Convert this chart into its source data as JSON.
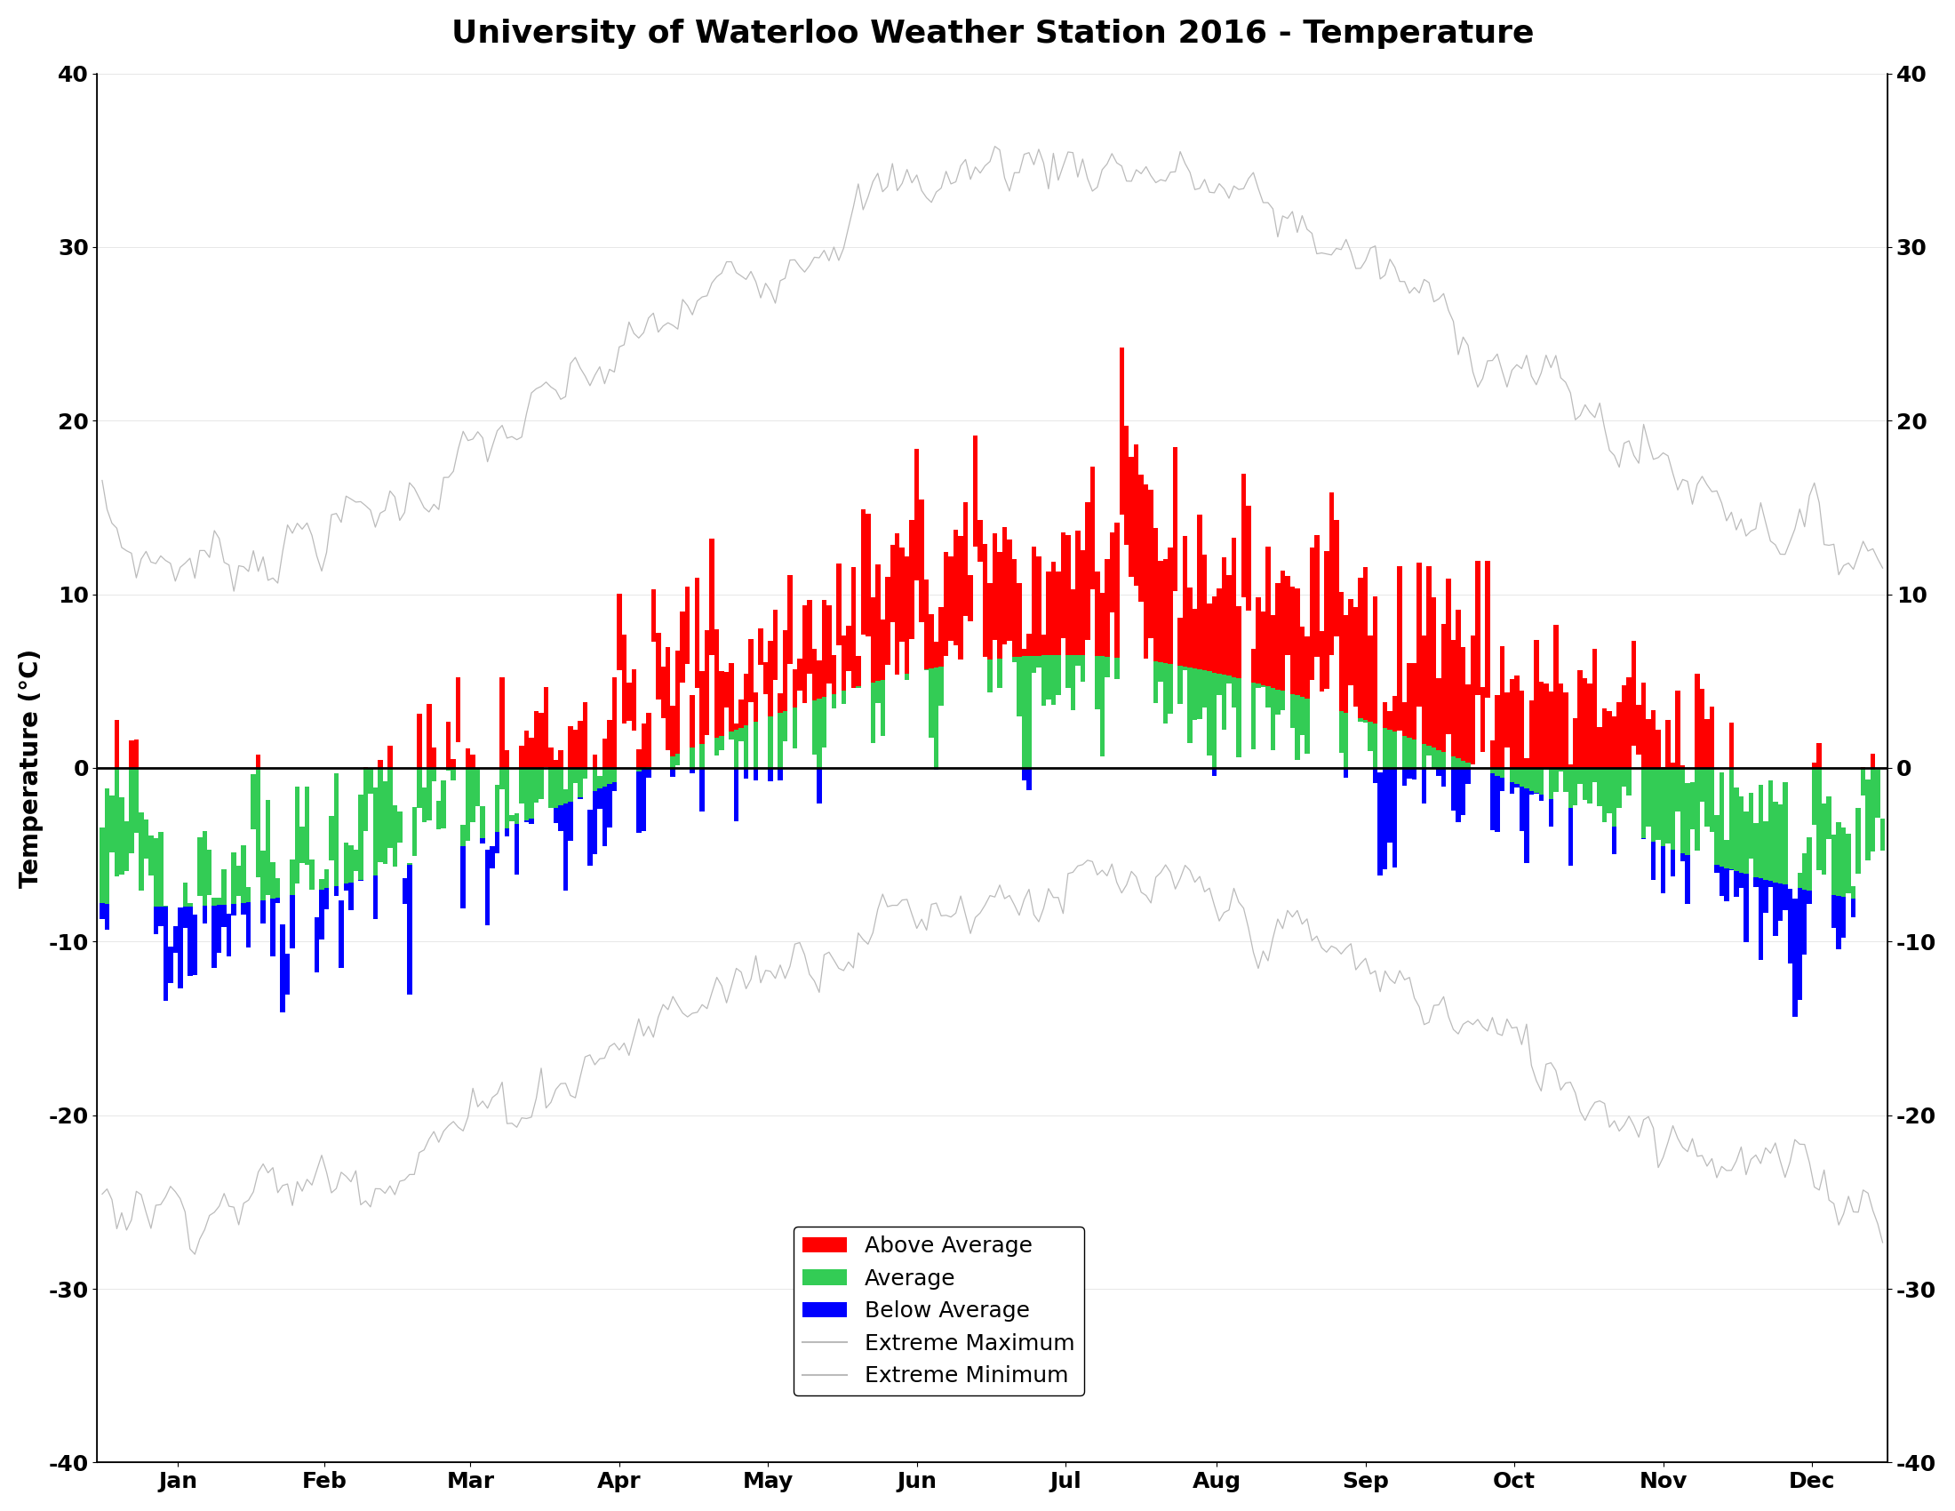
{
  "title": "University of Waterloo Weather Station 2016 - Temperature",
  "ylabel": "Temperature (°C)",
  "ylim": [
    -40,
    40
  ],
  "yticks": [
    -40,
    -30,
    -20,
    -10,
    0,
    10,
    20,
    30,
    40
  ],
  "months": [
    "Jan",
    "Feb",
    "Mar",
    "Apr",
    "May",
    "Jun",
    "Jul",
    "Aug",
    "Sep",
    "Oct",
    "Nov",
    "Dec"
  ],
  "days_in_month": [
    31,
    29,
    31,
    30,
    31,
    30,
    31,
    31,
    30,
    31,
    30,
    31
  ],
  "background_color": "#ffffff",
  "title_fontsize": 26,
  "axis_fontsize": 20,
  "tick_fontsize": 18,
  "legend_fontsize": 18,
  "color_above": "#ff0000",
  "color_avg": "#33cc55",
  "color_below": "#0000ff",
  "color_extreme": "#bbbbbb",
  "color_zero_line": "#000000"
}
